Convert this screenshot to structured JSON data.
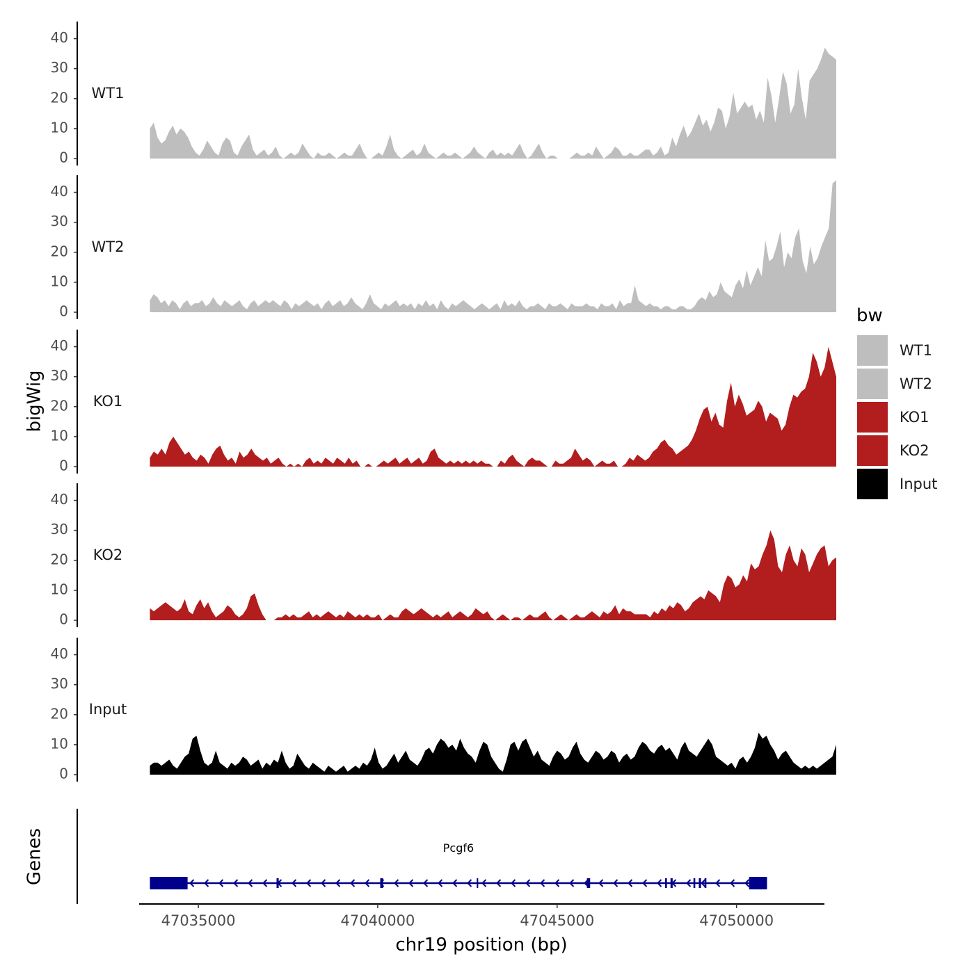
{
  "chart_data": {
    "type": "area",
    "chromosome": "chr19",
    "xlabel": "chr19 position (bp)",
    "ylabel": "bigWig",
    "xlim": [
      47033350,
      47052450
    ],
    "ylim": [
      0,
      45
    ],
    "x_ticks": [
      47035000,
      47040000,
      47045000,
      47050000
    ],
    "x_tick_labels": [
      "47035000",
      "47040000",
      "47045000",
      "47050000"
    ],
    "y_ticks": [
      0,
      10,
      20,
      30,
      40
    ],
    "y_tick_labels": [
      "0",
      "10",
      "20",
      "30",
      "40"
    ],
    "series_x_range": [
      47033650,
      47052780
    ],
    "series": [
      {
        "name": "WT1",
        "color": "#bebebe",
        "values": [
          10,
          12,
          7,
          5,
          6,
          9,
          11,
          8,
          10,
          9,
          7,
          4,
          2,
          1,
          3,
          6,
          4,
          2,
          1,
          5,
          7,
          6,
          2,
          1,
          4,
          6,
          8,
          3,
          1,
          2,
          3,
          1,
          2,
          4,
          1,
          0,
          1,
          2,
          1,
          2,
          5,
          3,
          1,
          0,
          2,
          1,
          1,
          2,
          1,
          0,
          1,
          2,
          1,
          1,
          3,
          5,
          2,
          0,
          0,
          1,
          2,
          1,
          4,
          8,
          3,
          1,
          0,
          1,
          2,
          3,
          1,
          2,
          5,
          2,
          1,
          0,
          1,
          2,
          1,
          1,
          2,
          1,
          0,
          1,
          2,
          4,
          2,
          1,
          0,
          2,
          3,
          1,
          2,
          1,
          2,
          1,
          3,
          5,
          2,
          0,
          1,
          3,
          5,
          2,
          0,
          1,
          1,
          0,
          0,
          0,
          0,
          1,
          2,
          1,
          1,
          2,
          1,
          4,
          2,
          0,
          1,
          2,
          4,
          3,
          1,
          1,
          2,
          1,
          1,
          2,
          3,
          3,
          1,
          2,
          4,
          1,
          2,
          7,
          4,
          8,
          11,
          7,
          9,
          12,
          15,
          11,
          13,
          9,
          12,
          17,
          16,
          10,
          14,
          22,
          15,
          17,
          19,
          17,
          18,
          13,
          16,
          12,
          27,
          21,
          12,
          20,
          29,
          25,
          15,
          18,
          30,
          20,
          13,
          26,
          28,
          30,
          33,
          37,
          35,
          34,
          33
        ]
      },
      {
        "name": "WT2",
        "color": "#bebebe",
        "values": [
          4,
          6,
          5,
          3,
          4,
          2,
          4,
          3,
          1,
          3,
          4,
          2,
          3,
          3,
          4,
          2,
          3,
          5,
          3,
          2,
          4,
          3,
          2,
          3,
          4,
          2,
          1,
          3,
          4,
          2,
          3,
          4,
          3,
          4,
          3,
          2,
          4,
          3,
          1,
          3,
          2,
          3,
          4,
          3,
          2,
          3,
          1,
          3,
          4,
          2,
          3,
          4,
          2,
          3,
          5,
          3,
          2,
          1,
          3,
          6,
          3,
          2,
          1,
          3,
          2,
          3,
          4,
          2,
          3,
          2,
          3,
          1,
          3,
          2,
          4,
          2,
          3,
          1,
          4,
          2,
          1,
          3,
          2,
          3,
          4,
          3,
          2,
          1,
          2,
          3,
          2,
          1,
          2,
          3,
          1,
          4,
          2,
          3,
          2,
          4,
          2,
          1,
          2,
          2,
          3,
          2,
          1,
          3,
          2,
          2,
          3,
          2,
          1,
          3,
          2,
          2,
          2,
          3,
          2,
          2,
          1,
          3,
          2,
          2,
          3,
          1,
          4,
          2,
          3,
          3,
          9,
          4,
          3,
          2,
          3,
          2,
          2,
          1,
          2,
          2,
          1,
          1,
          2,
          2,
          1,
          1,
          2,
          4,
          5,
          4,
          7,
          5,
          6,
          10,
          7,
          6,
          5,
          9,
          11,
          8,
          14,
          9,
          12,
          15,
          12,
          24,
          17,
          18,
          22,
          27,
          15,
          20,
          18,
          25,
          28,
          17,
          13,
          22,
          16,
          18,
          22,
          25,
          28,
          43,
          44
        ]
      },
      {
        "name": "KO1",
        "color": "#b21d1e",
        "values": [
          3,
          5,
          4,
          6,
          4,
          8,
          10,
          8,
          6,
          4,
          5,
          3,
          2,
          4,
          3,
          1,
          4,
          6,
          7,
          4,
          2,
          3,
          1,
          5,
          3,
          4,
          6,
          4,
          3,
          2,
          3,
          1,
          2,
          3,
          1,
          0,
          1,
          0,
          1,
          0,
          2,
          3,
          1,
          2,
          1,
          3,
          2,
          1,
          3,
          2,
          1,
          3,
          1,
          2,
          0,
          0,
          1,
          0,
          0,
          1,
          2,
          1,
          2,
          3,
          1,
          2,
          3,
          1,
          2,
          3,
          1,
          2,
          5,
          6,
          3,
          2,
          1,
          2,
          1,
          2,
          1,
          2,
          1,
          2,
          1,
          2,
          1,
          1,
          0,
          0,
          2,
          1,
          3,
          4,
          2,
          1,
          0,
          2,
          3,
          2,
          2,
          1,
          0,
          0,
          2,
          1,
          1,
          2,
          3,
          6,
          4,
          2,
          3,
          2,
          0,
          1,
          2,
          1,
          1,
          2,
          0,
          0,
          1,
          3,
          2,
          4,
          3,
          2,
          3,
          5,
          6,
          8,
          9,
          7,
          6,
          4,
          5,
          6,
          7,
          9,
          12,
          16,
          19,
          20,
          15,
          18,
          14,
          13,
          22,
          28,
          20,
          24,
          21,
          17,
          18,
          19,
          22,
          20,
          15,
          18,
          17,
          16,
          12,
          14,
          20,
          24,
          23,
          25,
          26,
          30,
          38,
          35,
          30,
          33,
          40,
          35,
          30
        ]
      },
      {
        "name": "KO2",
        "color": "#b21d1e",
        "values": [
          4,
          3,
          4,
          5,
          6,
          5,
          4,
          3,
          4,
          7,
          3,
          2,
          5,
          7,
          4,
          6,
          3,
          1,
          2,
          3,
          5,
          4,
          2,
          1,
          2,
          4,
          8,
          9,
          5,
          2,
          0,
          0,
          0,
          1,
          1,
          2,
          1,
          2,
          1,
          1,
          2,
          3,
          1,
          2,
          1,
          2,
          3,
          2,
          1,
          2,
          1,
          3,
          2,
          1,
          2,
          1,
          2,
          1,
          1,
          2,
          0,
          1,
          2,
          1,
          1,
          3,
          4,
          3,
          2,
          3,
          4,
          3,
          2,
          1,
          2,
          1,
          2,
          3,
          1,
          2,
          3,
          2,
          1,
          2,
          4,
          3,
          2,
          3,
          1,
          0,
          1,
          2,
          1,
          0,
          1,
          1,
          0,
          1,
          2,
          1,
          1,
          2,
          3,
          1,
          0,
          1,
          2,
          1,
          0,
          1,
          2,
          1,
          1,
          2,
          3,
          2,
          1,
          3,
          2,
          3,
          5,
          2,
          4,
          3,
          3,
          2,
          2,
          2,
          2,
          1,
          3,
          2,
          4,
          3,
          5,
          4,
          6,
          5,
          3,
          4,
          6,
          7,
          8,
          7,
          10,
          9,
          8,
          6,
          12,
          15,
          14,
          11,
          12,
          15,
          13,
          19,
          17,
          18,
          22,
          25,
          30,
          27,
          18,
          16,
          22,
          25,
          20,
          18,
          24,
          22,
          16,
          19,
          22,
          24,
          25,
          18,
          20,
          21
        ]
      },
      {
        "name": "Input",
        "color": "#000000",
        "values": [
          3,
          4,
          4,
          3,
          4,
          5,
          3,
          2,
          4,
          6,
          7,
          12,
          13,
          8,
          4,
          3,
          4,
          8,
          4,
          3,
          2,
          4,
          3,
          4,
          6,
          5,
          3,
          4,
          5,
          2,
          4,
          3,
          5,
          4,
          8,
          4,
          2,
          3,
          7,
          5,
          3,
          2,
          4,
          3,
          2,
          1,
          3,
          2,
          1,
          2,
          3,
          1,
          2,
          3,
          2,
          4,
          3,
          5,
          9,
          4,
          2,
          3,
          5,
          7,
          4,
          6,
          8,
          5,
          4,
          3,
          5,
          8,
          9,
          7,
          10,
          12,
          11,
          9,
          10,
          8,
          12,
          9,
          7,
          6,
          4,
          8,
          11,
          10,
          6,
          4,
          2,
          1,
          5,
          10,
          11,
          8,
          11,
          12,
          9,
          6,
          8,
          5,
          4,
          3,
          6,
          8,
          7,
          5,
          6,
          9,
          11,
          7,
          5,
          4,
          6,
          8,
          7,
          5,
          6,
          8,
          7,
          4,
          6,
          7,
          5,
          6,
          9,
          11,
          10,
          8,
          7,
          9,
          10,
          8,
          9,
          7,
          5,
          9,
          11,
          8,
          7,
          6,
          8,
          10,
          12,
          10,
          6,
          5,
          4,
          3,
          4,
          2,
          5,
          6,
          4,
          6,
          9,
          14,
          12,
          13,
          10,
          8,
          5,
          7,
          8,
          6,
          4,
          3,
          2,
          3,
          2,
          3,
          2,
          3,
          4,
          5,
          6,
          10
        ]
      }
    ],
    "legend": {
      "title": "bw",
      "entries": [
        {
          "label": "WT1",
          "color": "#bebebe"
        },
        {
          "label": "WT2",
          "color": "#bebebe"
        },
        {
          "label": "KO1",
          "color": "#b21d1e"
        },
        {
          "label": "KO2",
          "color": "#b21d1e"
        },
        {
          "label": "Input",
          "color": "#000000"
        }
      ]
    },
    "genes_track": {
      "title": "Genes",
      "color": "#00008b",
      "gene": {
        "name": "Pcgf6",
        "strand": "-",
        "start": 47033650,
        "end": 47050850,
        "exons": [
          [
            47033650,
            47034700
          ],
          [
            47037180,
            47037240
          ],
          [
            47040070,
            47040150
          ],
          [
            47042760,
            47042800
          ],
          [
            47045830,
            47045920
          ],
          [
            47048010,
            47048060
          ],
          [
            47048160,
            47048220
          ],
          [
            47048800,
            47048850
          ],
          [
            47048950,
            47049010
          ],
          [
            47049110,
            47049160
          ],
          [
            47050350,
            47050850
          ]
        ]
      }
    }
  }
}
